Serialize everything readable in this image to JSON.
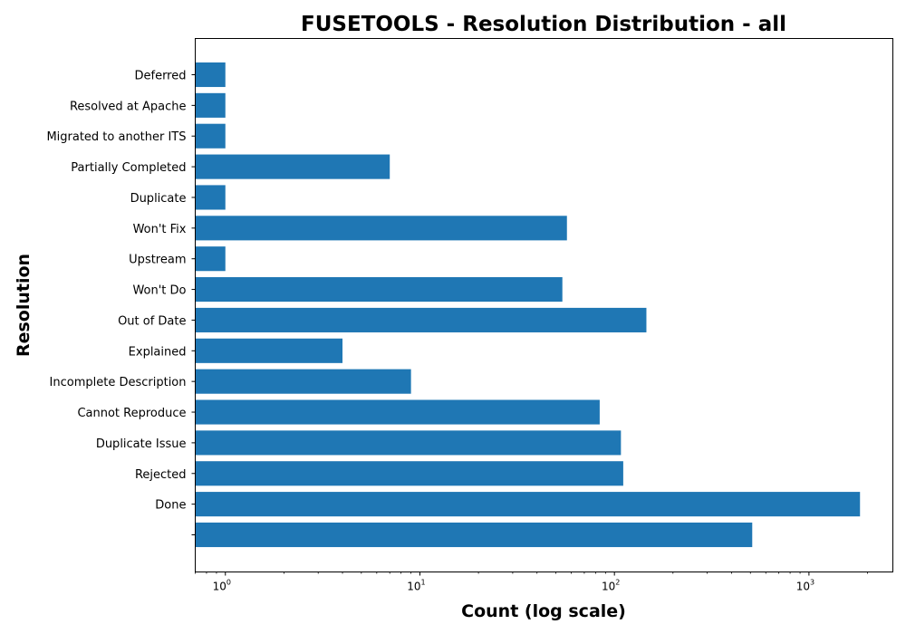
{
  "chart_data": {
    "type": "bar",
    "orientation": "horizontal",
    "title": "FUSETOOLS - Resolution Distribution - all",
    "xlabel": "Count (log scale)",
    "ylabel": "Resolution",
    "xscale": "log",
    "xlim": [
      0.7,
      2700
    ],
    "xticks": [
      {
        "value": 1,
        "base": "10",
        "exp": "0"
      },
      {
        "value": 10,
        "base": "10",
        "exp": "1"
      },
      {
        "value": 100,
        "base": "10",
        "exp": "2"
      },
      {
        "value": 1000,
        "base": "10",
        "exp": "3"
      }
    ],
    "categories": [
      "",
      "Done",
      "Rejected",
      "Duplicate Issue",
      "Cannot Reproduce",
      "Incomplete Description",
      "Explained",
      "Out of Date",
      "Won't Do",
      "Upstream",
      "Won't Fix",
      "Duplicate",
      "Partially Completed",
      "Migrated to another ITS",
      "Resolved at Apache",
      "Deferred"
    ],
    "values": [
      511,
      1830,
      111,
      108,
      84,
      9,
      4,
      146,
      54,
      1,
      57,
      1,
      7,
      1,
      1,
      1
    ],
    "bar_color": "#1f77b4",
    "grid": false,
    "legend": "none"
  }
}
